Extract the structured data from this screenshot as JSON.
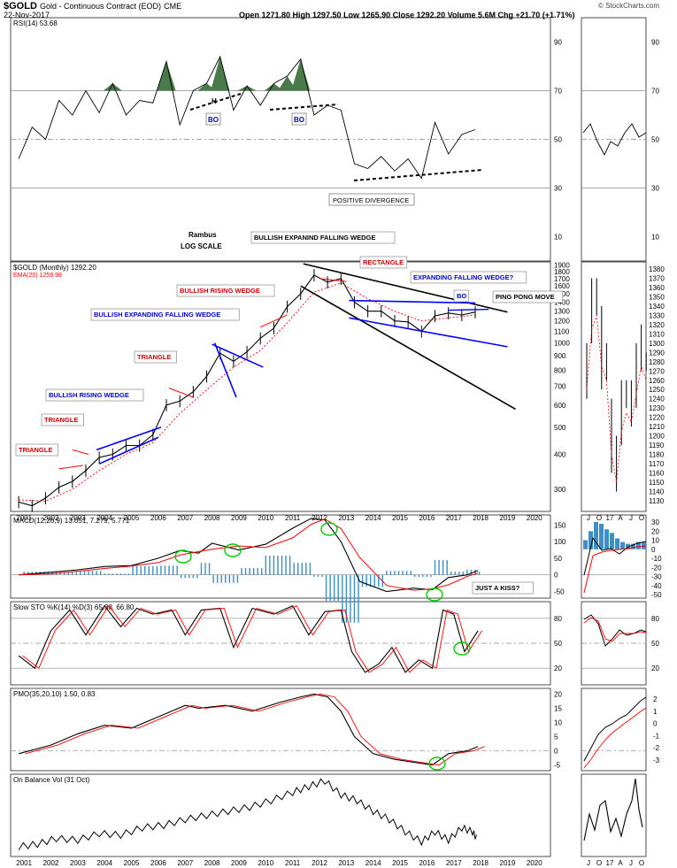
{
  "header": {
    "symbol": "$GOLD",
    "description": "Gold - Continuous Contract (EOD)",
    "exchange": "CME",
    "date": "22-Nov-2017",
    "quote": "Open 1271.80  High 1297.50  Low 1265.90  Close 1292.20  Volume 5.6M  Chg +21.70 (+1.71%)",
    "watermark": "© StockCharts.com"
  },
  "colors": {
    "price": "#000000",
    "ema": "#ff0000",
    "wedge_blue": "#0000ff",
    "trend_red": "#ff0000",
    "hist": "#3b8fc4",
    "circle": "#00cc00",
    "rsi_fill": "#4a7a4a",
    "label_blue": "#0000cc",
    "label_red": "#cc0000"
  },
  "chart_data": [
    {
      "type": "line",
      "panel": "rsi",
      "title": "RSI(14) 53.68",
      "y_ticks": [
        10,
        30,
        50,
        70,
        90
      ],
      "ylim": [
        0,
        100
      ],
      "guides": [
        30,
        50,
        70
      ],
      "x": [
        2000.8,
        2001.3,
        2001.8,
        2002.3,
        2002.8,
        2003.3,
        2003.8,
        2004.3,
        2004.8,
        2005.3,
        2005.8,
        2006.3,
        2006.8,
        2007.3,
        2007.8,
        2008.3,
        2008.8,
        2009.3,
        2009.8,
        2010.3,
        2010.8,
        2011.3,
        2011.8,
        2012.3,
        2012.8,
        2013.3,
        2013.8,
        2014.3,
        2014.8,
        2015.3,
        2015.8,
        2016.3,
        2016.8,
        2017.3,
        2017.8
      ],
      "values": [
        42,
        55,
        50,
        66,
        60,
        70,
        61,
        73,
        60,
        66,
        65,
        82,
        56,
        70,
        73,
        84,
        62,
        72,
        64,
        73,
        76,
        83,
        60,
        64,
        62,
        40,
        38,
        43,
        37,
        42,
        34,
        57,
        44,
        52,
        54
      ]
    },
    {
      "type": "line",
      "panel": "price",
      "title": "$GOLD (Monthly) 1292.20",
      "scale": "log",
      "ylabel": "",
      "ylim": [
        250,
        1950
      ],
      "y_ticks": [
        300,
        400,
        500,
        600,
        700,
        800,
        900,
        1000,
        1100,
        1200,
        1300,
        1400,
        1500,
        1600,
        1700,
        1800,
        1900
      ],
      "x_ticks": [
        "2001",
        "2002",
        "2003",
        "2004",
        "2005",
        "2006",
        "2007",
        "2008",
        "2009",
        "2010",
        "2011",
        "2012",
        "2013",
        "2014",
        "2015",
        "2016",
        "2017",
        "2018",
        "2019",
        "2020"
      ],
      "series": [
        {
          "name": "$GOLD",
          "x": [
            2000.8,
            2001.3,
            2001.8,
            2002.3,
            2002.8,
            2003.3,
            2003.8,
            2004.3,
            2004.8,
            2005.3,
            2005.8,
            2006.3,
            2006.8,
            2007.3,
            2007.8,
            2008.3,
            2008.8,
            2009.3,
            2009.8,
            2010.3,
            2010.8,
            2011.3,
            2011.8,
            2012.3,
            2012.8,
            2013.3,
            2013.8,
            2014.3,
            2014.8,
            2015.3,
            2015.8,
            2016.3,
            2016.8,
            2017.3,
            2017.8
          ],
          "values": [
            270,
            262,
            279,
            305,
            320,
            350,
            390,
            400,
            430,
            430,
            470,
            600,
            620,
            670,
            760,
            920,
            860,
            930,
            1040,
            1130,
            1350,
            1500,
            1750,
            1650,
            1700,
            1400,
            1300,
            1300,
            1200,
            1190,
            1100,
            1250,
            1280,
            1260,
            1290
          ]
        },
        {
          "name": "EMA(20) 1259.98",
          "x": [
            2000.8,
            2001.8,
            2002.8,
            2003.8,
            2004.8,
            2005.8,
            2006.8,
            2007.8,
            2008.8,
            2009.8,
            2010.8,
            2011.8,
            2012.8,
            2013.8,
            2014.8,
            2015.8,
            2016.8,
            2017.8
          ],
          "values": [
            275,
            272,
            300,
            350,
            400,
            440,
            560,
            680,
            820,
            940,
            1180,
            1520,
            1640,
            1440,
            1300,
            1200,
            1230,
            1260
          ]
        }
      ]
    },
    {
      "type": "line",
      "panel": "price-inset",
      "x_ticks": [
        "J",
        "O",
        "17",
        "A",
        "J",
        "O"
      ],
      "y_ticks": [
        1130,
        1140,
        1150,
        1160,
        1170,
        1180,
        1190,
        1200,
        1210,
        1220,
        1230,
        1240,
        1250,
        1260,
        1270,
        1280,
        1290,
        1300,
        1310,
        1320,
        1330,
        1340,
        1350,
        1360,
        1370,
        1380
      ]
    },
    {
      "type": "line",
      "panel": "macd",
      "title": "MACD(12,26,9) 13.051, 7.279, 5.771",
      "y_ticks": [
        -50,
        0,
        50,
        100,
        150
      ],
      "ylim": [
        -70,
        180
      ],
      "x": [
        2000.8,
        2002,
        2003,
        2004,
        2005,
        2006,
        2006.8,
        2007.5,
        2008,
        2009,
        2010,
        2011,
        2011.7,
        2012.2,
        2012.8,
        2013.5,
        2014.5,
        2015.5,
        2016.2,
        2016.8,
        2017.5,
        2017.9
      ],
      "values": [
        0,
        8,
        15,
        25,
        28,
        50,
        73,
        65,
        95,
        75,
        92,
        140,
        170,
        165,
        100,
        -20,
        -50,
        -40,
        -45,
        -8,
        0,
        13
      ]
    },
    {
      "type": "line",
      "panel": "macd-inset",
      "y_ticks": [
        30,
        20,
        10,
        0,
        -10,
        -20,
        -30,
        -40,
        -50
      ]
    },
    {
      "type": "line",
      "panel": "slowsto",
      "title": "Slow STO %K(14) %D(3) 65.38, 66.80",
      "y_ticks": [
        20,
        50,
        80
      ],
      "ylim": [
        0,
        100
      ],
      "guides": [
        20,
        50,
        80
      ],
      "x": [
        2000.8,
        2001.4,
        2002,
        2002.7,
        2003.3,
        2004,
        2004.6,
        2005.2,
        2005.8,
        2006.5,
        2007,
        2007.6,
        2008.3,
        2008.8,
        2009.5,
        2010.3,
        2011,
        2011.6,
        2012.2,
        2012.8,
        2013.2,
        2013.7,
        2014.2,
        2014.7,
        2015.2,
        2015.7,
        2016.2,
        2016.6,
        2017,
        2017.4,
        2017.9
      ],
      "values": [
        35,
        20,
        65,
        90,
        60,
        95,
        70,
        92,
        85,
        90,
        60,
        90,
        92,
        45,
        92,
        85,
        95,
        60,
        88,
        90,
        40,
        15,
        25,
        45,
        15,
        30,
        20,
        90,
        85,
        40,
        65
      ]
    },
    {
      "type": "line",
      "panel": "slowsto-inset",
      "y_ticks": [
        20,
        50,
        80
      ]
    },
    {
      "type": "line",
      "panel": "pmo",
      "title": "PMO(35,20,10) 1.50, 0.83",
      "y_ticks": [
        -5,
        0,
        5,
        10,
        15,
        20
      ],
      "ylim": [
        -7,
        22
      ],
      "guides": [
        0
      ],
      "x": [
        2000.8,
        2002,
        2003,
        2004,
        2005,
        2006,
        2007,
        2007.5,
        2008.5,
        2009.5,
        2010.5,
        2011.3,
        2011.8,
        2012.3,
        2012.8,
        2013.3,
        2014,
        2014.8,
        2015.5,
        2016.2,
        2016.8,
        2017.5,
        2017.9
      ],
      "values": [
        -1,
        2,
        6,
        9,
        8,
        12,
        16,
        15,
        16,
        14,
        17,
        19,
        20,
        19,
        14,
        5,
        -1,
        -3,
        -4,
        -5,
        -1,
        0,
        1.5
      ]
    },
    {
      "type": "line",
      "panel": "pmo-inset",
      "y_ticks": [
        2,
        1,
        0,
        -1,
        -2,
        -3
      ]
    },
    {
      "type": "line",
      "panel": "obv",
      "title": "On Balance Vol (31 Oct)",
      "ylim": [
        0,
        100
      ],
      "x": [
        2000.8,
        2001.5,
        2002.2,
        2003,
        2003.8,
        2004.6,
        2005.4,
        2006.2,
        2007,
        2007.8,
        2008.6,
        2009.4,
        2010.2,
        2011,
        2011.6,
        2012.2,
        2012.8,
        2013.4,
        2014,
        2014.6,
        2015.2,
        2015.8,
        2016.3,
        2016.8,
        2017.3,
        2017.7,
        2017.9
      ],
      "values": [
        12,
        15,
        22,
        20,
        28,
        26,
        35,
        38,
        45,
        50,
        55,
        60,
        68,
        78,
        85,
        92,
        75,
        68,
        55,
        45,
        30,
        18,
        30,
        20,
        35,
        30,
        20
      ]
    }
  ],
  "annotations": {
    "rambus": "Rambus",
    "log_scale": "LOG SCALE",
    "bullish_expanding_falling_wedge_title": "BULLISH EXPANIND FALLING WEDGE",
    "rectangle": "RECTANGLE",
    "expanding_falling_wedge_q": "EXPANDING FALLING WEDGE?",
    "bo_price": "BO",
    "ping_pong": "PING PONG MOVE",
    "bullish_rising_wedge_1": "BULLISH RISING WEDGE",
    "bullish_expanding_falling_wedge_1": "BULLISH EXPANDING FALLING WEDGE",
    "triangle_2007": "TRIANGLE",
    "bullish_rising_wedge_2": "BULLISH RISING WEDGE",
    "triangle_2003": "TRIANGLE",
    "triangle_2002": "TRIANGLE",
    "rsi_bo_1": "BO",
    "rsi_bo_2": "BO",
    "rsi_h": "H",
    "positive_divergence": "POSITIVE DIVERGENCE",
    "just_a_kiss": "JUST A KISS?"
  }
}
